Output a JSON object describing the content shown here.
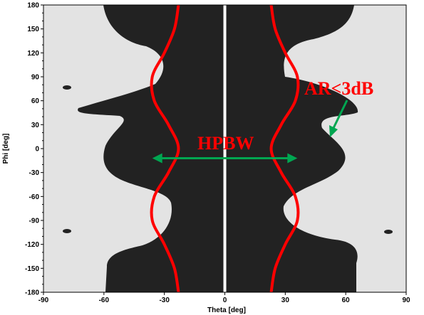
{
  "chart_data": {
    "type": "heatmap",
    "xlabel": "Theta [deg]",
    "ylabel": "Phi [deg]",
    "xlim": [
      -90,
      90
    ],
    "ylim": [
      -180,
      180
    ],
    "xticks": [
      -90,
      -60,
      -30,
      0,
      30,
      60,
      90
    ],
    "yticks": [
      180,
      150,
      120,
      90,
      60,
      30,
      0,
      -30,
      -60,
      -90,
      -120,
      -150,
      -180
    ],
    "regions": [
      {
        "name": "AR<3dB",
        "color": "#222222"
      },
      {
        "name": "background",
        "color": "#e3e3e3"
      }
    ],
    "annotations": [
      {
        "text": "AR<3dB",
        "color": "#ff0000"
      },
      {
        "text": "HPBW",
        "color": "#ff0000"
      }
    ],
    "hpbw_arrow": {
      "theta_from": -36,
      "theta_to": 36,
      "phi": -12,
      "color": "#00a651"
    },
    "beamwidth_curve_color": "#ff0000",
    "beamwidth_curve": [
      {
        "phi": 180,
        "theta": 23
      },
      {
        "phi": 150,
        "theta": 25
      },
      {
        "phi": 120,
        "theta": 30
      },
      {
        "phi": 90,
        "theta": 36
      },
      {
        "phi": 60,
        "theta": 35
      },
      {
        "phi": 30,
        "theta": 28
      },
      {
        "phi": 0,
        "theta": 23
      },
      {
        "phi": -30,
        "theta": 28
      },
      {
        "phi": -60,
        "theta": 35
      },
      {
        "phi": -90,
        "theta": 36
      },
      {
        "phi": -120,
        "theta": 30
      },
      {
        "phi": -150,
        "theta": 25
      },
      {
        "phi": -180,
        "theta": 23
      }
    ]
  }
}
